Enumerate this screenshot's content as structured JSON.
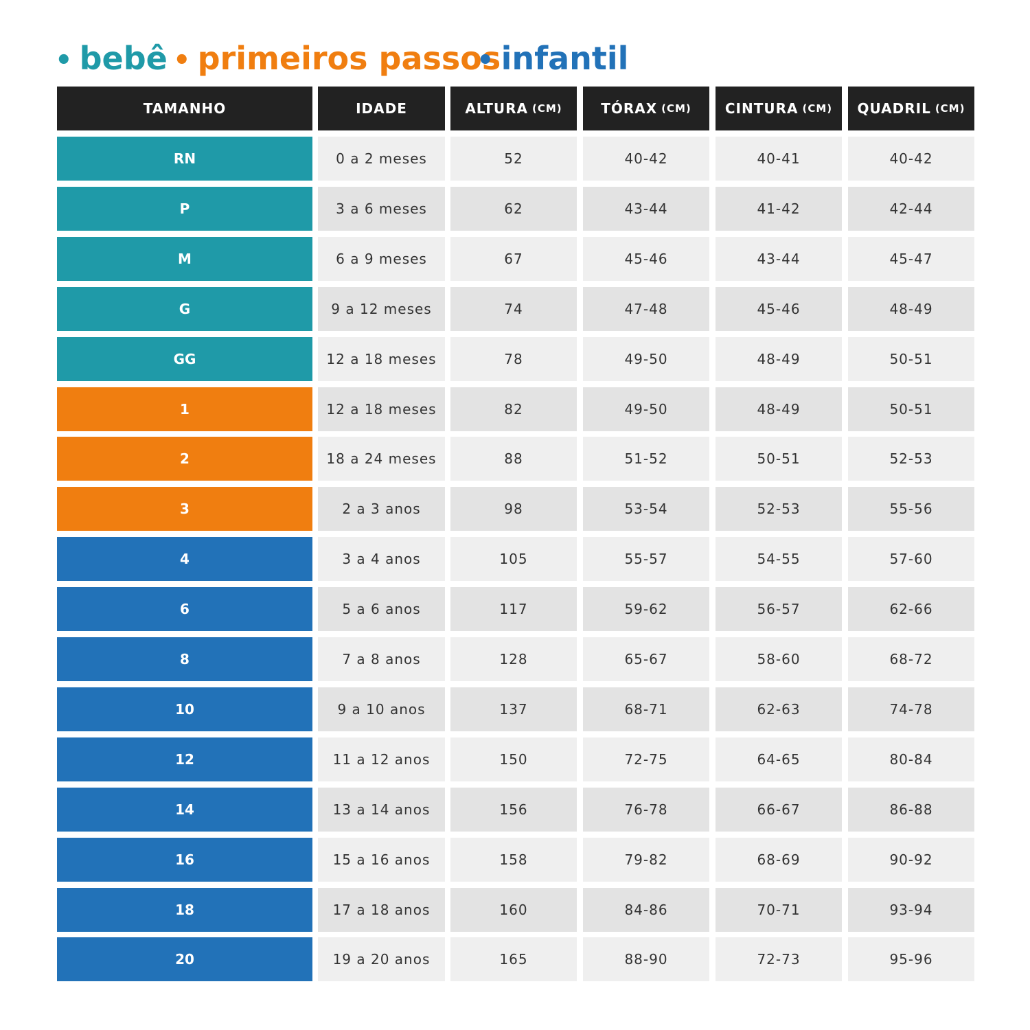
{
  "groups": [
    {
      "name": "bebê",
      "color": "#1f9aa8",
      "rows": [
        [
          "RN",
          "0 a 2 meses",
          "52",
          "40-42",
          "40-41",
          "40-42"
        ],
        [
          "P",
          "3 a 6 meses",
          "62",
          "43-44",
          "41-42",
          "42-44"
        ],
        [
          "M",
          "6 a 9 meses",
          "67",
          "45-46",
          "43-44",
          "45-47"
        ],
        [
          "G",
          "9 a 12 meses",
          "74",
          "47-48",
          "45-46",
          "48-49"
        ],
        [
          "GG",
          "12 a 18 meses",
          "78",
          "49-50",
          "48-49",
          "50-51"
        ]
      ]
    },
    {
      "name": "primeiros passos",
      "color": "#f07e10",
      "rows": [
        [
          "1",
          "12 a 18 meses",
          "82",
          "49-50",
          "48-49",
          "50-51"
        ],
        [
          "2",
          "18 a 24 meses",
          "88",
          "51-52",
          "50-51",
          "52-53"
        ],
        [
          "3",
          "2 a 3 anos",
          "98",
          "53-54",
          "52-53",
          "55-56"
        ]
      ]
    },
    {
      "name": "infantil",
      "color": "#2272b8",
      "rows": [
        [
          "4",
          "3 a 4 anos",
          "105",
          "55-57",
          "54-55",
          "57-60"
        ],
        [
          "6",
          "5 a 6 anos",
          "117",
          "59-62",
          "56-57",
          "62-66"
        ],
        [
          "8",
          "7 a 8 anos",
          "128",
          "65-67",
          "58-60",
          "68-72"
        ],
        [
          "10",
          "9 a 10 anos",
          "137",
          "68-71",
          "62-63",
          "74-78"
        ],
        [
          "12",
          "11 a 12 anos",
          "150",
          "72-75",
          "64-65",
          "80-84"
        ],
        [
          "14",
          "13 a 14 anos",
          "156",
          "76-78",
          "66-67",
          "86-88"
        ],
        [
          "16",
          "15 a 16 anos",
          "158",
          "79-82",
          "68-69",
          "90-92"
        ],
        [
          "18",
          "17 a 18 anos",
          "160",
          "84-86",
          "70-71",
          "93-94"
        ],
        [
          "20",
          "19 a 20 anos",
          "165",
          "88-90",
          "72-73",
          "95-96"
        ]
      ]
    }
  ],
  "header": [
    {
      "main": "TAMANHO"
    },
    {
      "main": "IDADE"
    },
    {
      "main": "ALTURA",
      "unit": "(CM)"
    },
    {
      "main": "TÓRAX",
      "unit": "(CM)"
    },
    {
      "main": "CINTURA",
      "unit": "(CM)"
    },
    {
      "main": "QUADRIL",
      "unit": "(CM)"
    }
  ]
}
